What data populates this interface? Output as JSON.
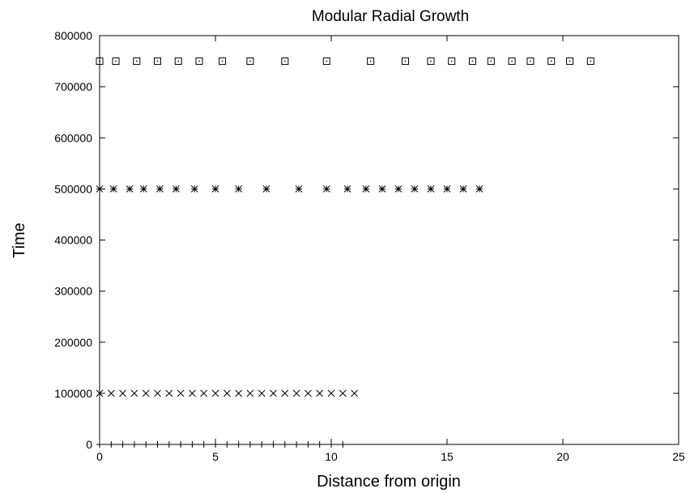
{
  "chart_data": {
    "type": "scatter",
    "title": "Modular Radial Growth",
    "xlabel": "Distance from origin",
    "ylabel": "Time",
    "xlim": [
      0,
      25
    ],
    "ylim": [
      0,
      800000
    ],
    "xticks": [
      0,
      5,
      10,
      15,
      20,
      25
    ],
    "yticks": [
      0,
      100000,
      200000,
      300000,
      400000,
      500000,
      600000,
      700000,
      800000
    ],
    "grid": false,
    "legend": "none",
    "series": [
      {
        "marker": "plus",
        "y": 0,
        "x": [
          0,
          0.5,
          1.0,
          1.5,
          2.0,
          2.5,
          3.0,
          3.5,
          4.0,
          4.5,
          5.0,
          5.5,
          6.0,
          6.5,
          7.0,
          7.5,
          8.0,
          8.5,
          9.0,
          9.5,
          10.0,
          10.5
        ]
      },
      {
        "marker": "cross",
        "y": 100000,
        "x": [
          0,
          0.5,
          1.0,
          1.5,
          2.0,
          2.5,
          3.0,
          3.5,
          4.0,
          4.5,
          5.0,
          5.5,
          6.0,
          6.5,
          7.0,
          7.5,
          8.0,
          8.5,
          9.0,
          9.5,
          10.0,
          10.5,
          11.0
        ]
      },
      {
        "marker": "star",
        "y": 500000,
        "x": [
          0,
          0.6,
          1.3,
          1.9,
          2.6,
          3.3,
          4.1,
          5.0,
          6.0,
          7.2,
          8.6,
          9.8,
          10.7,
          11.5,
          12.2,
          12.9,
          13.6,
          14.3,
          15.0,
          15.7,
          16.4
        ]
      },
      {
        "marker": "square",
        "y": 750000,
        "x": [
          0,
          0.7,
          1.6,
          2.5,
          3.4,
          4.3,
          5.3,
          6.5,
          8.0,
          9.8,
          11.7,
          13.2,
          14.3,
          15.2,
          16.1,
          16.9,
          17.8,
          18.6,
          19.5,
          20.3,
          21.2
        ]
      }
    ]
  }
}
